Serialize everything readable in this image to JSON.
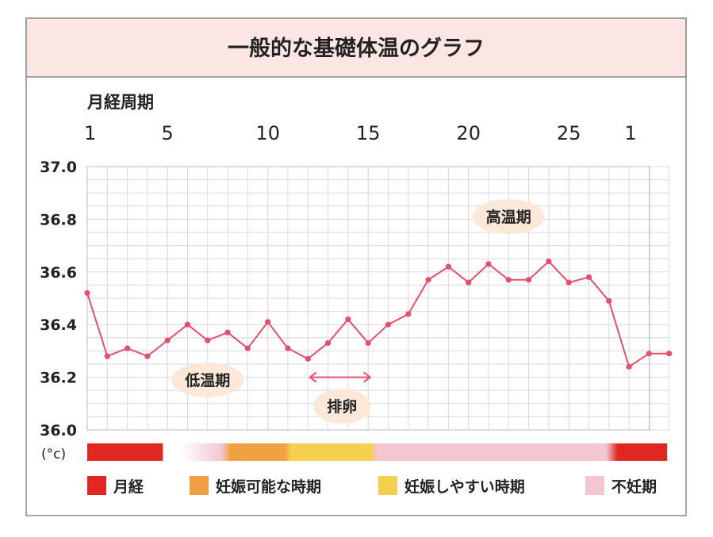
{
  "title": "一般的な基礎体温のグラフ",
  "colors": {
    "title_bg": "#fbe6e4",
    "border": "#888888",
    "grid": "#d8d8e8",
    "major_grid": "#f4c9b8",
    "line": "#e2506a",
    "bubble": "#fbe8d8",
    "arrow": "#e2506a",
    "menstruation": "#e02822",
    "fertile": "#f0a040",
    "ovulation_window": "#f5cf50",
    "infertile": "#f3c6d2"
  },
  "chart_data": {
    "type": "line",
    "title": "一般的な基礎体温のグラフ",
    "xlabel": "月経周期",
    "ylabel": "(°c)",
    "x_tick_labels": [
      {
        "day": 1,
        "label": "1"
      },
      {
        "day": 5,
        "label": "5"
      },
      {
        "day": 10,
        "label": "10"
      },
      {
        "day": 15,
        "label": "15"
      },
      {
        "day": 20,
        "label": "20"
      },
      {
        "day": 25,
        "label": "25"
      },
      {
        "day": 28,
        "label": "1"
      }
    ],
    "y_ticks": [
      "36.0",
      "36.2",
      "36.4",
      "36.6",
      "36.8",
      "37.0"
    ],
    "ylim": [
      36.0,
      37.0
    ],
    "xlim": [
      1,
      30
    ],
    "series": [
      {
        "name": "基礎体温",
        "x": [
          1,
          2,
          3,
          4,
          5,
          6,
          7,
          8,
          9,
          10,
          11,
          12,
          13,
          14,
          15,
          16,
          17,
          18,
          19,
          20,
          21,
          22,
          23,
          24,
          25,
          26,
          27,
          28,
          29,
          30
        ],
        "values": [
          36.52,
          36.28,
          36.31,
          36.28,
          36.34,
          36.4,
          36.34,
          36.37,
          36.31,
          36.41,
          36.31,
          36.27,
          36.33,
          36.42,
          36.33,
          36.4,
          36.44,
          36.57,
          36.62,
          36.56,
          36.63,
          36.57,
          36.57,
          36.64,
          36.56,
          36.58,
          36.49,
          36.24,
          36.29,
          36.29
        ]
      }
    ],
    "annotations": [
      {
        "label": "低温期",
        "day": 7.0,
        "value": 36.19
      },
      {
        "label": "高温期",
        "day": 22.0,
        "value": 36.81
      },
      {
        "label": "排卵",
        "day": 13.7,
        "value": 36.09
      }
    ],
    "ovulation_arrow": {
      "from_day": 12.1,
      "to_day": 15.1,
      "value": 36.2
    },
    "phase_bar": [
      {
        "phase": "menstruation",
        "from_day": 1,
        "to_day": 4.8
      },
      {
        "phase": "gap",
        "from_day": 4.8,
        "to_day": 8
      },
      {
        "phase": "fertile",
        "from_day": 8,
        "to_day": 11
      },
      {
        "phase": "ovulation_window",
        "from_day": 11,
        "to_day": 15.3
      },
      {
        "phase": "infertile",
        "from_day": 15.3,
        "to_day": 27
      },
      {
        "phase": "menstruation",
        "from_day": 27,
        "to_day": 29.9
      }
    ],
    "legend": [
      {
        "label": "月経",
        "color": "#e02822"
      },
      {
        "label": "妊娠可能な時期",
        "color": "#f0a040"
      },
      {
        "label": "妊娠しやすい時期",
        "color": "#f5cf50"
      },
      {
        "label": "不妊期",
        "color": "#f3c6d2"
      }
    ]
  }
}
